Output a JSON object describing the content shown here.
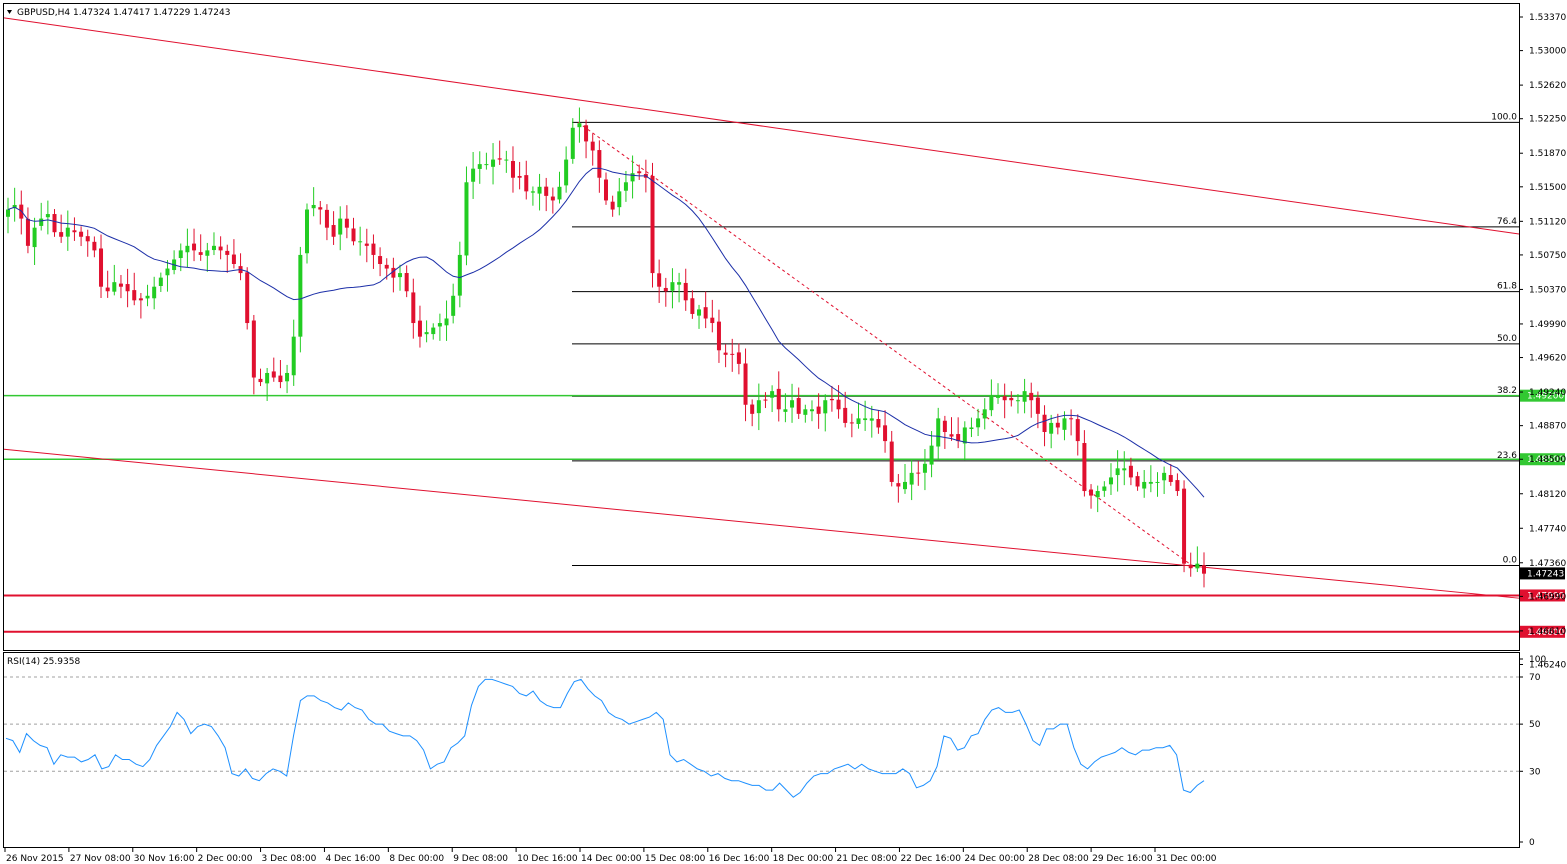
{
  "header": {
    "title": "GBPUSD,H4  1.47324 1.47417 1.47229 1.47243"
  },
  "rsi_header": {
    "title": "RSI(14) 25.9358"
  },
  "colors": {
    "bull": "#22cc22",
    "bear": "#e0102f",
    "ma": "#1c2fa8",
    "trend": "#e0102f",
    "support": "#32c832",
    "resistance": "#e0102f",
    "rsi": "#1e90ff",
    "fib": "#000000",
    "grid_dash": "#a0a0a0"
  },
  "chart_data": [
    {
      "type": "candlestick",
      "symbol": "GBPUSD",
      "timeframe": "H4",
      "ohlc_label": {
        "open": 1.47324,
        "high": 1.47417,
        "low": 1.47229,
        "close": 1.47243
      },
      "ylim": [
        1.4605,
        1.5375
      ],
      "y_ticks": [
        "1.53370",
        "1.53000",
        "1.52620",
        "1.52250",
        "1.51870",
        "1.51500",
        "1.51120",
        "1.50750",
        "1.50370",
        "1.49990",
        "1.49620",
        "1.49240",
        "1.48870",
        "1.48500",
        "1.48120",
        "1.47740",
        "1.47360",
        "1.46990",
        "1.46610",
        "1.46240"
      ],
      "x_ticks": [
        "26 Nov 2015",
        "27 Nov 08:00",
        "30 Nov 16:00",
        "2 Dec 00:00",
        "3 Dec 08:00",
        "4 Dec 16:00",
        "8 Dec 00:00",
        "9 Dec 08:00",
        "10 Dec 16:00",
        "14 Dec 00:00",
        "15 Dec 08:00",
        "16 Dec 16:00",
        "18 Dec 00:00",
        "21 Dec 08:00",
        "22 Dec 16:00",
        "24 Dec 00:00",
        "28 Dec 08:00",
        "29 Dec 16:00",
        "31 Dec 00:00"
      ],
      "close_series": [
        1.5125,
        1.513,
        1.5115,
        1.5085,
        1.5105,
        1.5115,
        1.512,
        1.51,
        1.5095,
        1.5105,
        1.51,
        1.5095,
        1.509,
        1.508,
        1.504,
        1.5035,
        1.5045,
        1.504,
        1.5035,
        1.5025,
        1.5025,
        1.503,
        1.504,
        1.505,
        1.506,
        1.507,
        1.508,
        1.5085,
        1.508,
        1.5075,
        1.508,
        1.5085,
        1.508,
        1.5075,
        1.5065,
        1.5055,
        1.5,
        1.494,
        1.4935,
        1.4945,
        1.494,
        1.4935,
        1.4945,
        1.4985,
        1.5075,
        1.5125,
        1.513,
        1.5125,
        1.5105,
        1.5095,
        1.5115,
        1.5105,
        1.509,
        1.509,
        1.5085,
        1.5075,
        1.5065,
        1.506,
        1.505,
        1.5055,
        1.5035,
        1.5,
        1.4985,
        1.499,
        1.4995,
        1.5,
        1.5005,
        1.503,
        1.5075,
        1.5155,
        1.517,
        1.5175,
        1.5175,
        1.518,
        1.518,
        1.518,
        1.516,
        1.516,
        1.5145,
        1.5145,
        1.515,
        1.514,
        1.5135,
        1.515,
        1.518,
        1.5215,
        1.522,
        1.52,
        1.519,
        1.516,
        1.5135,
        1.5125,
        1.5145,
        1.5155,
        1.5165,
        1.5165,
        1.516,
        1.5055,
        1.504,
        1.5035,
        1.5045,
        1.5045,
        1.5025,
        1.501,
        1.5015,
        1.5005,
        1.5,
        1.497,
        1.4965,
        1.4965,
        1.4955,
        1.491,
        1.49,
        1.4915,
        1.4915,
        1.4925,
        1.4905,
        1.4905,
        1.4915,
        1.49,
        1.4905,
        1.4905,
        1.49,
        1.4915,
        1.4915,
        1.4905,
        1.489,
        1.489,
        1.4895,
        1.4895,
        1.4895,
        1.4885,
        1.487,
        1.4825,
        1.482,
        1.4825,
        1.4835,
        1.4835,
        1.4845,
        1.4865,
        1.4895,
        1.488,
        1.4875,
        1.487,
        1.4885,
        1.4885,
        1.4895,
        1.4905,
        1.492,
        1.492,
        1.4915,
        1.4915,
        1.4915,
        1.4925,
        1.4915,
        1.49,
        1.488,
        1.489,
        1.4885,
        1.4895,
        1.4895,
        1.487,
        1.4815,
        1.481,
        1.4815,
        1.482,
        1.483,
        1.484,
        1.484,
        1.483,
        1.482,
        1.4825,
        1.4825,
        1.4825,
        1.4835,
        1.4825,
        1.4815,
        1.4735,
        1.473,
        1.4735,
        1.4724
      ],
      "horizontal_levels": [
        {
          "price": 1.492,
          "label": "1.49200",
          "kind": "support-green"
        },
        {
          "price": 1.485,
          "label": "1.48500",
          "kind": "support-green"
        },
        {
          "price": 1.47,
          "label": "1.47000",
          "kind": "support-red"
        },
        {
          "price": 1.466,
          "label": "1.46600",
          "kind": "support-red"
        },
        {
          "price": 1.47243,
          "label": "1.47243",
          "kind": "current-price"
        }
      ],
      "fibonacci": {
        "high": 1.5221,
        "low": 1.4733,
        "levels": [
          {
            "label": "100.0",
            "ratio": 1.0
          },
          {
            "label": "76.4",
            "ratio": 0.764
          },
          {
            "label": "61.8",
            "ratio": 0.618
          },
          {
            "label": "50.0",
            "ratio": 0.5
          },
          {
            "label": "38.2",
            "ratio": 0.382
          },
          {
            "label": "23.6",
            "ratio": 0.236
          },
          {
            "label": "0.0",
            "ratio": 0.0
          }
        ]
      },
      "trendlines": [
        {
          "from": {
            "bar": 0,
            "price": 1.5336
          },
          "to": {
            "bar": 196,
            "price": 1.5098
          },
          "kind": "upper-channel"
        },
        {
          "from": {
            "bar": 0,
            "price": 1.4861
          },
          "to": {
            "bar": 196,
            "price": 1.4697
          },
          "kind": "lower-channel"
        }
      ]
    },
    {
      "type": "line",
      "name": "RSI(14)",
      "value_label": 25.9358,
      "ylim": [
        0,
        100
      ],
      "y_ticks": [
        "100",
        "70",
        "50",
        "30",
        "0"
      ],
      "levels": [
        70,
        50,
        30
      ],
      "series": [
        {
          "name": "RSI(14)",
          "values": [
            44,
            43,
            38,
            46,
            43,
            41,
            40,
            33,
            37,
            36,
            36,
            34,
            35,
            37,
            31,
            32,
            37,
            35,
            35,
            33,
            32,
            35,
            41,
            45,
            49,
            55,
            52,
            46,
            49,
            50,
            49,
            45,
            40,
            29,
            28,
            31,
            27,
            26,
            29,
            31,
            30,
            28,
            45,
            60,
            62,
            62,
            60,
            59,
            57,
            56,
            59,
            57,
            56,
            52,
            50,
            50,
            47,
            46,
            45,
            45,
            43,
            39,
            31,
            33,
            34,
            40,
            42,
            45,
            58,
            66,
            69,
            69,
            68,
            67,
            66,
            63,
            62,
            64,
            60,
            58,
            57,
            57,
            63,
            68,
            69,
            65,
            62,
            60,
            55,
            53,
            52,
            50,
            51,
            52,
            53,
            55,
            52,
            37,
            34,
            35,
            33,
            31,
            30,
            28,
            29,
            27,
            26,
            26,
            25,
            24,
            24,
            22,
            22,
            25,
            22,
            19,
            21,
            25,
            28,
            29,
            29,
            31,
            32,
            33,
            31,
            33,
            31,
            30,
            29,
            29,
            29,
            31,
            29,
            23,
            24,
            26,
            32,
            45,
            44,
            39,
            40,
            45,
            46,
            52,
            56,
            57,
            55,
            55,
            56,
            50,
            43,
            41,
            48,
            48,
            50,
            50,
            40,
            33,
            31,
            34,
            36,
            37,
            38,
            40,
            38,
            37,
            39,
            39,
            40,
            40,
            41,
            37,
            22,
            21,
            24,
            26
          ]
        }
      ]
    }
  ]
}
